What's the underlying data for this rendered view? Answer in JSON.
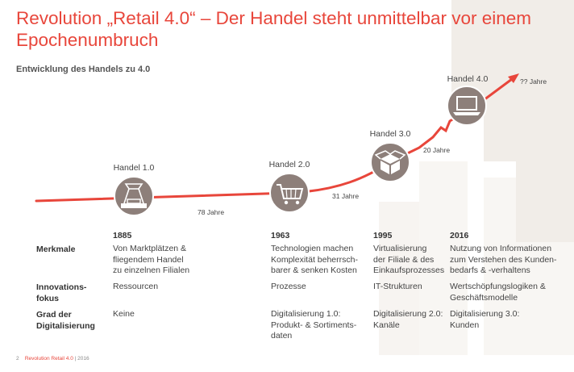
{
  "title": "Revolution „Retail 4.0“ – Der Handel steht unmittelbar vor einem Epochenumbruch",
  "subtitle": "Entwicklung des Handels zu 4.0",
  "stages": [
    {
      "label": "Handel 1.0",
      "icon": "scale-icon",
      "year": "1885"
    },
    {
      "label": "Handel 2.0",
      "icon": "shopping-cart-icon",
      "year": "1963"
    },
    {
      "label": "Handel 3.0",
      "icon": "parcel-box-icon",
      "year": "1995"
    },
    {
      "label": "Handel 4.0",
      "icon": "laptop-icon",
      "year": "2016"
    }
  ],
  "gaps": [
    "78 Jahre",
    "31 Jahre",
    "20 Jahre",
    "?? Jahre"
  ],
  "rows": [
    {
      "head": [
        "Merkmale"
      ],
      "cells": [
        [
          "Von Marktplätzen &",
          "fliegendem Handel",
          "zu einzelnen Filialen"
        ],
        [
          "Technologien machen",
          "Komplexität beherrsch-",
          "barer & senken Kosten"
        ],
        [
          "Virtualisierung",
          "der Filiale & des",
          "Einkaufsprozesses"
        ],
        [
          "Nutzung von Informationen",
          "zum Verstehen des Kunden-",
          "bedarfs & -verhaltens"
        ]
      ]
    },
    {
      "head": [
        "Innovations-",
        "fokus"
      ],
      "cells": [
        [
          "Ressourcen"
        ],
        [
          "Prozesse"
        ],
        [
          "IT-Strukturen"
        ],
        [
          "Wertschöpfungslogiken &",
          "Geschäftsmodelle"
        ]
      ]
    },
    {
      "head": [
        "Grad der",
        "Digitalisierung"
      ],
      "cells": [
        [
          "Keine"
        ],
        [
          "Digitalisierung 1.0:",
          "Produkt- & Sortiments-",
          "daten"
        ],
        [
          "Digitalisierung 2.0:",
          "Kanäle"
        ],
        [
          "Digitalisierung 3.0:",
          "Kunden"
        ]
      ]
    }
  ],
  "footer": {
    "page": "2",
    "brand": "Revolution Retail 4.0",
    "year": "| 2016"
  },
  "colors": {
    "accent": "#e8463b",
    "icon_fill": "#8d7f7a"
  }
}
